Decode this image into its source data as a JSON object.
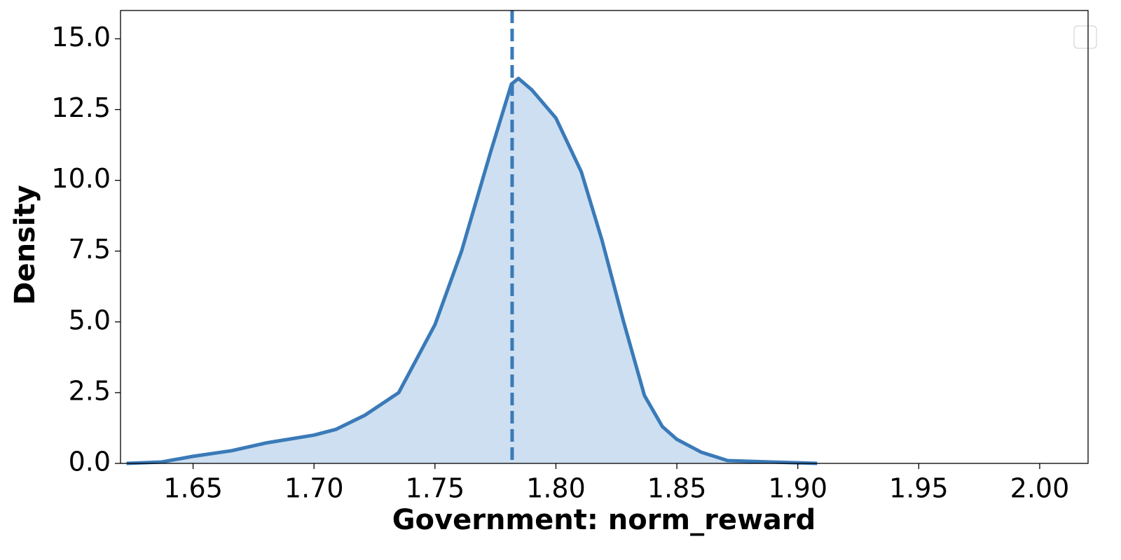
{
  "chart_data": {
    "type": "area",
    "x_label": "Government: norm_reward",
    "y_label": "Density",
    "x": [
      1.6225,
      1.637,
      1.65,
      1.666,
      1.68,
      1.7,
      1.709,
      1.721,
      1.735,
      1.75,
      1.761,
      1.773,
      1.7816,
      1.7845,
      1.79,
      1.8,
      1.8105,
      1.819,
      1.828,
      1.8366,
      1.844,
      1.85,
      1.86,
      1.871,
      1.889,
      1.908
    ],
    "series": [
      {
        "color": "#3a7ab8",
        "fill": "#cddff0",
        "values": [
          0.0,
          0.05,
          0.25,
          0.45,
          0.72,
          1.0,
          1.2,
          1.7,
          2.5,
          4.9,
          7.5,
          11.0,
          13.4,
          13.6,
          13.2,
          12.2,
          10.3,
          7.9,
          5.0,
          2.4,
          1.3,
          0.85,
          0.4,
          0.1,
          0.05,
          0.0
        ]
      }
    ],
    "vline_x": 1.7819,
    "xlim": [
      1.62,
      2.02
    ],
    "ylim": [
      0,
      16
    ],
    "xticks": [
      1.65,
      {
        "value": 1.7,
        "label": "1.70"
      },
      1.75,
      {
        "value": 1.8,
        "label": "1.80"
      },
      1.85,
      {
        "value": 1.9,
        "label": "1.90"
      },
      1.95,
      {
        "value": 2.0,
        "label": "2.00"
      }
    ],
    "yticks": [
      {
        "value": 0,
        "label": "0.0"
      },
      2.5,
      {
        "value": 5,
        "label": "5.0"
      },
      7.5,
      {
        "value": 10,
        "label": "10.0"
      },
      12.5,
      {
        "value": 15,
        "label": "15.0"
      }
    ],
    "grid": false
  }
}
